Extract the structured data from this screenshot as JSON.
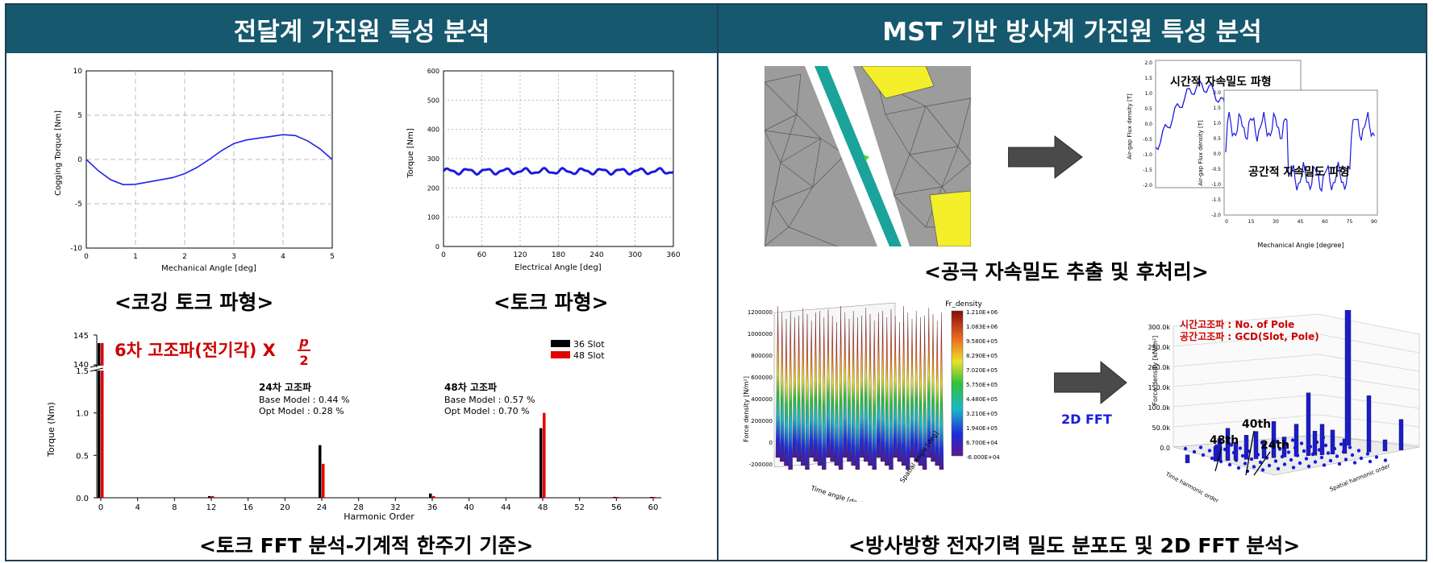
{
  "headers": {
    "left": "전달계 가진원 특성 분석",
    "right": "MST 기반 방사계 가진원 특성 분석"
  },
  "colors": {
    "header_bg": "#16586e",
    "accent_red": "#cc0000",
    "accent_blue": "#1a1ae0"
  },
  "captions": {
    "cogging": "<코깅 토크 파형>",
    "torque": "<토크 파형>",
    "fft": "<토크 FFT 분석-기계적 한주기 기준>",
    "airgap": "<공극 자속밀도 추출 및 후처리>",
    "force": "<방사방향 전자기력 밀도 분포도 및 2D FFT 분석>"
  },
  "chart_data": [
    {
      "type": "line",
      "ylabel": "Cogging Torque [Nm]",
      "xlabel": "Mechanical Angle [deg]",
      "xlim": [
        0,
        5
      ],
      "ylim": [
        -10,
        10
      ],
      "xticks": [
        "0",
        "1",
        "2",
        "3",
        "4",
        "5"
      ],
      "yticks": [
        "10",
        "5",
        "0",
        "-5",
        "-10"
      ],
      "grid": true,
      "x": [
        0,
        0.25,
        0.5,
        0.75,
        1.0,
        1.25,
        1.5,
        1.75,
        2.0,
        2.25,
        2.5,
        2.75,
        3.0,
        3.25,
        3.5,
        3.75,
        4.0,
        4.25,
        4.5,
        4.75,
        5.0
      ],
      "y": [
        0,
        -1.3,
        -2.3,
        -2.85,
        -2.8,
        -2.55,
        -2.3,
        -2.05,
        -1.6,
        -0.9,
        0,
        1.0,
        1.8,
        2.2,
        2.4,
        2.6,
        2.8,
        2.7,
        2.1,
        1.2,
        0
      ]
    },
    {
      "type": "line",
      "ylabel": "Torque [Nm]",
      "xlabel": "Electrical Angle [deg]",
      "xlim": [
        0,
        360
      ],
      "ylim": [
        0,
        600
      ],
      "xticks": [
        "0",
        "60",
        "120",
        "180",
        "240",
        "300",
        "360"
      ],
      "yticks": [
        "600",
        "500",
        "400",
        "300",
        "200",
        "100",
        "0"
      ],
      "grid": true,
      "mean": 257,
      "ripple": 8
    },
    {
      "type": "bar",
      "ylabel": "Torque (Nm)",
      "xlabel": "Harmonic Order",
      "xticks": [
        "0",
        "4",
        "8",
        "12",
        "16",
        "20",
        "24",
        "28",
        "32",
        "36",
        "40",
        "44",
        "48",
        "52",
        "56",
        "60"
      ],
      "yticks_low": [
        "0.0",
        "0.5",
        "1.0",
        "1.5"
      ],
      "yticks_high": [
        "140",
        "145"
      ],
      "series": [
        {
          "name": "36 Slot",
          "color": "#000000",
          "points": [
            [
              0,
              143
            ],
            [
              12,
              0.02
            ],
            [
              24,
              0.62
            ],
            [
              36,
              0.05
            ],
            [
              48,
              0.82
            ],
            [
              56,
              0.01
            ],
            [
              60,
              0.01
            ]
          ]
        },
        {
          "name": "48 Slot",
          "color": "#e60000",
          "points": [
            [
              0,
              143
            ],
            [
              12,
              0.02
            ],
            [
              24,
              0.4
            ],
            [
              36,
              0.02
            ],
            [
              48,
              1.0
            ],
            [
              56,
              0.01
            ],
            [
              60,
              0.01
            ]
          ]
        }
      ],
      "annotations": {
        "big_red": "6차 고조파(전기각) X",
        "frac_num": "p",
        "frac_den": "2",
        "h24_title": "24차 고조파",
        "h24_base": "Base Model : 0.44 %",
        "h24_opt": "Opt Model   : 0.28 %",
        "h48_title": "48차 고조파",
        "h48_base": "Base Model : 0.57 %",
        "h48_opt": "Opt Model   : 0.70 %"
      }
    }
  ],
  "airgap_plot": {
    "title_time": "시간적 자속밀도 파형",
    "title_space": "공간적 자속밀도 파형",
    "ylabel": "Air-gap Flux density [T]",
    "xlabel": "Mechanical Angle [degree]",
    "xticks": [
      "0",
      "15",
      "30",
      "45",
      "60",
      "75",
      "90"
    ],
    "yticks": [
      "2.0",
      "1.5",
      "1.0",
      "0.5",
      "0.0",
      "-0.5",
      "-1.0",
      "-1.5",
      "-2.0"
    ]
  },
  "force_plot": {
    "legend_title": "Fr_density",
    "legend_values": [
      "1.210E+06",
      "1.083E+06",
      "9.580E+05",
      "8.290E+05",
      "7.020E+05",
      "5.750E+05",
      "4.480E+05",
      "3.210E+05",
      "1.940E+05",
      "6.700E+04",
      "-6.000E+04"
    ],
    "zticks": [
      "1200000",
      "1000000",
      "800000",
      "600000",
      "400000",
      "200000",
      "0",
      "-200000"
    ],
    "zlabel": "Force density [N/m²]",
    "xlabel": "Time angle [deg]",
    "ylabel": "Spatial angle [deg]",
    "fft_label": "2D FFT"
  },
  "fft3d": {
    "note1": "시간고조파 : No. of Pole",
    "note2": "공간고조파 : GCD(Slot, Pole)",
    "zticks": [
      "300.0k",
      "250.0k",
      "200.0k",
      "150.0k",
      "100.0k",
      "50.0k",
      "0.0"
    ],
    "zlabel": "Force density [kN/m²]",
    "label_40": "40th",
    "label_48": "48th",
    "label_24": "24th",
    "xlabel": "Time harmonic order",
    "ylabel": "Spatial harmonic order"
  }
}
